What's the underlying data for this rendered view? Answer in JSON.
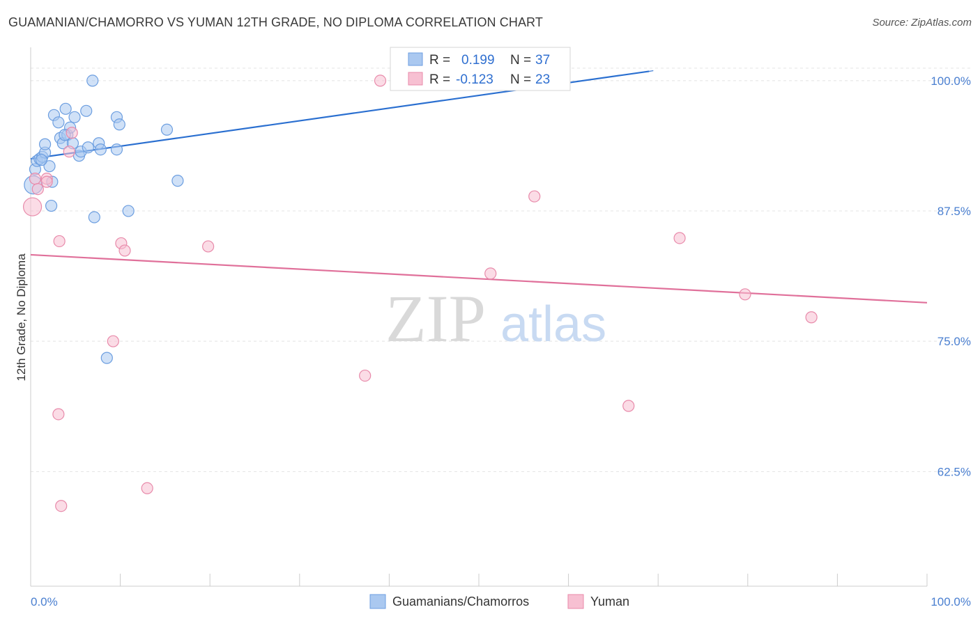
{
  "title": "GUAMANIAN/CHAMORRO VS YUMAN 12TH GRADE, NO DIPLOMA CORRELATION CHART",
  "source": "Source: ZipAtlas.com",
  "watermark": {
    "zip": "ZIP",
    "atlas": "atlas"
  },
  "colors": {
    "blue_fill": "#aac8f0",
    "blue_stroke": "#6c9ee0",
    "blue_line": "#2a6fd0",
    "pink_fill": "#f7c0d2",
    "pink_stroke": "#e88aaa",
    "pink_line": "#e0709a",
    "grid": "#e3e3e3",
    "axis_text": "#4a7fd0"
  },
  "legend": {
    "rows": [
      {
        "r_label": "R =",
        "r_value": "0.199",
        "n_label": "N =",
        "n_value": "37"
      },
      {
        "r_label": "R =",
        "r_value": "-0.123",
        "n_label": "N =",
        "n_value": "23"
      }
    ]
  },
  "bottom_legend": [
    "Guamanians/Chamorros",
    "Yuman"
  ],
  "chart_data": {
    "type": "scatter",
    "ylabel": "12th Grade, No Diploma",
    "xlabel": "",
    "xlim": [
      0,
      100
    ],
    "ylim": [
      51.5,
      103.2
    ],
    "x_tick_labels": [
      "0.0%",
      "100.0%"
    ],
    "y_ticks": [
      100.0,
      87.5,
      75.0,
      62.5
    ],
    "y_tick_labels": [
      "100.0%",
      "87.5%",
      "75.0%",
      "62.5%"
    ],
    "grid": true,
    "legend_position": "top-center",
    "series": [
      {
        "name": "Guamanians/Chamorros",
        "points": [
          [
            0.3,
            90.0
          ],
          [
            0.5,
            91.5
          ],
          [
            0.7,
            92.3
          ],
          [
            1.0,
            92.5
          ],
          [
            1.3,
            92.7
          ],
          [
            1.6,
            93.1
          ],
          [
            1.6,
            93.9
          ],
          [
            2.1,
            91.8
          ],
          [
            2.3,
            88.0
          ],
          [
            2.6,
            96.7
          ],
          [
            3.1,
            96.0
          ],
          [
            3.3,
            94.5
          ],
          [
            3.6,
            94.0
          ],
          [
            3.9,
            97.3
          ],
          [
            4.1,
            94.8
          ],
          [
            4.4,
            95.5
          ],
          [
            4.7,
            94.0
          ],
          [
            4.9,
            96.5
          ],
          [
            5.4,
            92.8
          ],
          [
            5.6,
            93.2
          ],
          [
            6.2,
            97.1
          ],
          [
            6.4,
            93.6
          ],
          [
            6.9,
            100.0
          ],
          [
            7.1,
            86.9
          ],
          [
            7.6,
            94.0
          ],
          [
            7.8,
            93.4
          ],
          [
            8.5,
            73.4
          ],
          [
            9.6,
            93.4
          ],
          [
            9.6,
            96.5
          ],
          [
            9.9,
            95.8
          ],
          [
            10.9,
            87.5
          ],
          [
            15.2,
            95.3
          ],
          [
            16.4,
            90.4
          ],
          [
            2.4,
            90.3
          ],
          [
            1.2,
            92.4
          ],
          [
            3.8,
            94.8
          ],
          [
            47.5,
            100.0
          ]
        ]
      },
      {
        "name": "Yuman",
        "points": [
          [
            0.2,
            87.9
          ],
          [
            0.5,
            90.6
          ],
          [
            0.8,
            89.6
          ],
          [
            1.8,
            90.6
          ],
          [
            1.8,
            90.3
          ],
          [
            3.2,
            84.6
          ],
          [
            3.1,
            68.0
          ],
          [
            3.4,
            59.2
          ],
          [
            4.3,
            93.2
          ],
          [
            4.6,
            95.0
          ],
          [
            9.2,
            75.0
          ],
          [
            10.1,
            84.4
          ],
          [
            10.5,
            83.7
          ],
          [
            13.0,
            60.9
          ],
          [
            19.8,
            84.1
          ],
          [
            37.3,
            71.7
          ],
          [
            39.0,
            100.0
          ],
          [
            51.3,
            81.5
          ],
          [
            56.2,
            88.9
          ],
          [
            66.7,
            68.8
          ],
          [
            72.4,
            84.9
          ],
          [
            79.7,
            79.5
          ],
          [
            87.1,
            77.3
          ]
        ]
      }
    ],
    "trendlines": [
      {
        "series": "Guamanians/Chamorros",
        "from": [
          0,
          92.5
        ],
        "to": [
          69,
          100.9
        ],
        "dashed_to": [
          69,
          100.9
        ],
        "dashed_end": [
          69,
          103.2
        ]
      },
      {
        "series": "Yuman",
        "from": [
          0,
          83.3
        ],
        "to": [
          100,
          78.7
        ]
      }
    ]
  }
}
